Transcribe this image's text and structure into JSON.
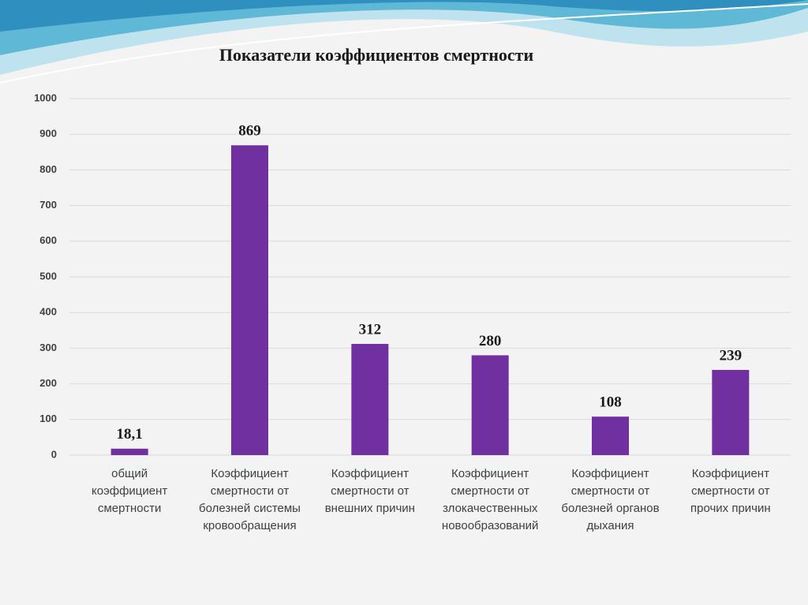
{
  "chart_data": {
    "type": "bar",
    "title": "Показатели коэффициентов смертности",
    "categories": [
      "общий коэффициент смертности",
      "Коэффициент смертности от болезней системы кровообращения",
      "Коэффициент смертности от внешних причин",
      "Коэффициент смертности от злокачественных новообразований",
      "Коэффициент смертности от болезней органов дыхания",
      "Коэффициент смертности от прочих причин"
    ],
    "values": [
      18.1,
      869,
      312,
      280,
      108,
      239
    ],
    "value_labels": [
      "18,1",
      "869",
      "312",
      "280",
      "108",
      "239"
    ],
    "color": "#7030a0",
    "ylim": [
      0,
      1000
    ],
    "yticks": [
      0,
      100,
      200,
      300,
      400,
      500,
      600,
      700,
      800,
      900,
      1000
    ],
    "grid": true
  }
}
